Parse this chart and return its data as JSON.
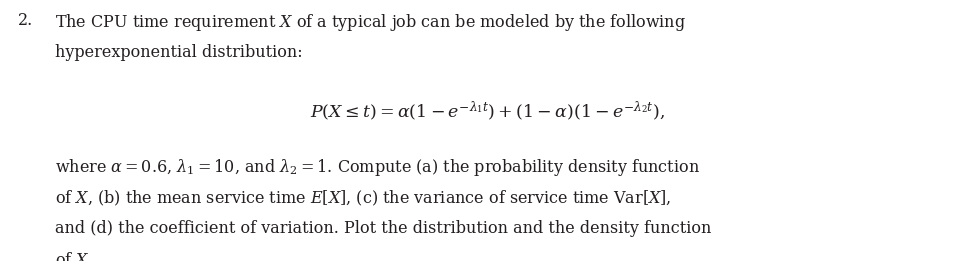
{
  "number": "2.",
  "line1": "The CPU time requirement $X$ of a typical job can be modeled by the following",
  "line2": "hyperexponential distribution:",
  "formula": "$P(X \\leq t) = \\alpha(1 - e^{-\\lambda_1 t}) + (1 - \\alpha)(1 - e^{-\\lambda_2 t}),$",
  "line3": "where $\\alpha = 0.6$, $\\lambda_1 = 10$, and $\\lambda_2 = 1$. Compute (a) the probability density function",
  "line4": "of $X$, (b) the mean service time $E[X]$, (c) the variance of service time $\\mathrm{Var}[X]$,",
  "line5": "and (d) the coefficient of variation. Plot the distribution and the density function",
  "line6": "of $X$.",
  "bg_color": "#ffffff",
  "text_color": "#231f20",
  "font_size": 11.5,
  "formula_font_size": 12.5,
  "fig_width": 9.75,
  "fig_height": 2.61,
  "dpi": 100
}
